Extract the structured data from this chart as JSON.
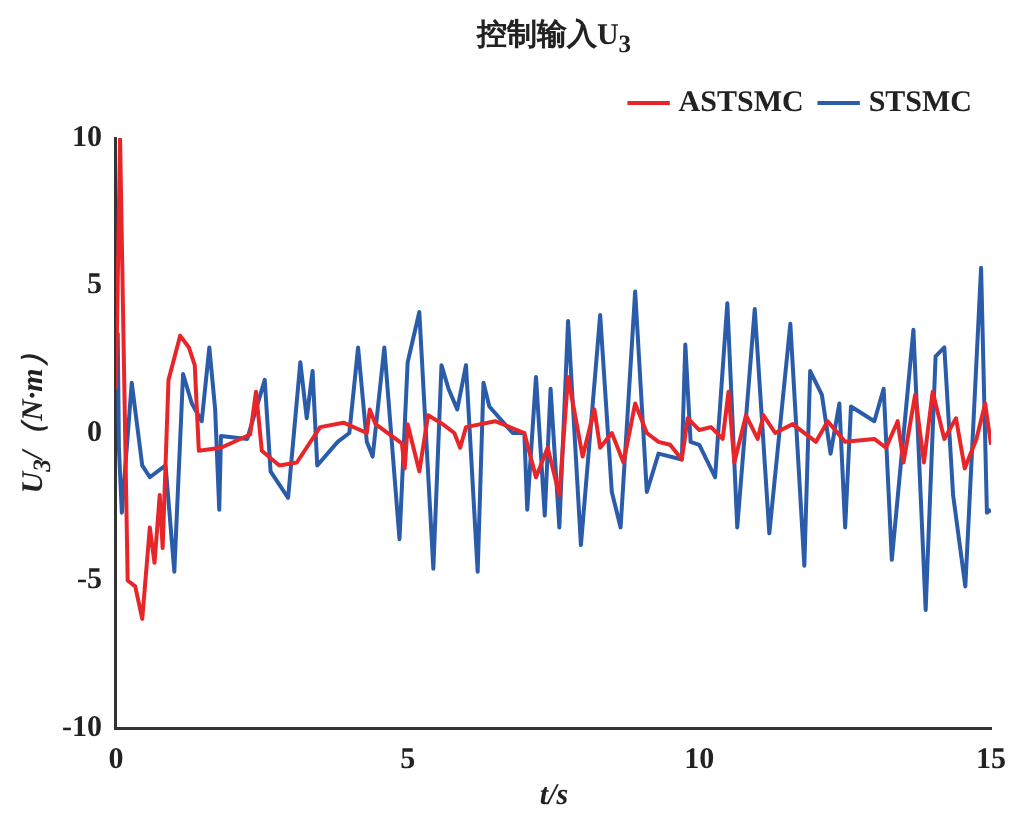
{
  "chart_data": {
    "type": "line",
    "title": "控制输入U$_{3}$",
    "xlabel": "t/s",
    "ylabel": "U$_{3}$/（N·m）",
    "xlim": [
      0,
      15
    ],
    "xticks": [
      0,
      5,
      10,
      15
    ],
    "ylim": [
      -10,
      10
    ],
    "yticks": [
      -10,
      -5,
      0,
      5,
      10
    ],
    "grid": false,
    "legend": "top right",
    "marker": "none",
    "line_style": "solid",
    "series": [
      {
        "name": "ASTSMC",
        "color": "#e8262a",
        "x": [
          0,
          0.07,
          0.2,
          0.33,
          0.45,
          0.58,
          0.66,
          0.75,
          0.8,
          0.9,
          1.1,
          1.25,
          1.35,
          1.42,
          1.8,
          2.3,
          2.4,
          2.5,
          2.8,
          3.1,
          3.5,
          3.9,
          4.3,
          4.35,
          4.45,
          4.9,
          4.95,
          5.0,
          5.2,
          5.35,
          5.6,
          5.8,
          5.9,
          6.0,
          6.5,
          7.0,
          7.2,
          7.4,
          7.6,
          7.75,
          8.0,
          8.2,
          8.3,
          8.5,
          8.7,
          8.9,
          9.1,
          9.3,
          9.5,
          9.7,
          9.8,
          10.0,
          10.2,
          10.4,
          10.5,
          10.6,
          10.8,
          11.0,
          11.1,
          11.3,
          11.6,
          12.0,
          12.2,
          12.5,
          13.0,
          13.2,
          13.4,
          13.5,
          13.7,
          13.85,
          14.0,
          14.2,
          14.4,
          14.55,
          14.75,
          14.9,
          15.0
        ],
        "values": [
          1.5,
          10,
          -5,
          -5.2,
          -6.3,
          -3.2,
          -4.4,
          -2.1,
          -3.9,
          1.8,
          3.3,
          2.9,
          2.3,
          -0.6,
          -0.5,
          -0.05,
          1.4,
          -0.6,
          -1.1,
          -1.0,
          0.2,
          0.35,
          0,
          0.8,
          0.3,
          -0.35,
          -1.2,
          0.3,
          -1.3,
          0.6,
          0.3,
          0,
          -0.5,
          0.2,
          0.4,
          0,
          -1.5,
          -0.5,
          -2.1,
          1.9,
          -0.8,
          0.8,
          -0.5,
          0,
          -1.0,
          1.0,
          0,
          -0.3,
          -0.4,
          -0.9,
          0.5,
          0.1,
          0.2,
          -0.2,
          1.4,
          -1.0,
          0.6,
          -0.2,
          0.6,
          0,
          0.3,
          -0.3,
          0.4,
          -0.3,
          -0.2,
          -0.5,
          0.4,
          -1.0,
          1.3,
          -1.0,
          1.4,
          -0.2,
          0.5,
          -1.2,
          -0.2,
          1.0,
          -0.4
        ]
      },
      {
        "name": "STSMC",
        "color": "#2a5caa",
        "x": [
          0.03,
          0.05,
          0.1,
          0.27,
          0.45,
          0.58,
          0.85,
          1.0,
          1.15,
          1.3,
          1.47,
          1.6,
          1.7,
          1.77,
          1.8,
          2.25,
          2.55,
          2.65,
          2.95,
          3.16,
          3.27,
          3.37,
          3.45,
          3.8,
          4.0,
          4.15,
          4.3,
          4.4,
          4.6,
          4.86,
          5.0,
          5.2,
          5.44,
          5.58,
          5.7,
          5.85,
          6.0,
          6.2,
          6.3,
          6.4,
          6.8,
          7.0,
          7.05,
          7.2,
          7.35,
          7.45,
          7.6,
          7.75,
          7.97,
          8.3,
          8.5,
          8.65,
          8.9,
          9.1,
          9.3,
          9.7,
          9.76,
          9.85,
          10.0,
          10.27,
          10.48,
          10.65,
          10.95,
          11.2,
          11.56,
          11.8,
          11.9,
          12.1,
          12.25,
          12.4,
          12.5,
          12.6,
          13.0,
          13.16,
          13.3,
          13.67,
          13.88,
          14.05,
          14.2,
          14.35,
          14.56,
          14.83,
          14.93,
          15.0
        ],
        "values": [
          3.4,
          -0.5,
          -2.7,
          1.7,
          -1.1,
          -1.5,
          -1.1,
          -4.7,
          2.0,
          1.0,
          0.4,
          2.9,
          0.8,
          -2.6,
          -0.1,
          -0.2,
          1.8,
          -1.3,
          -2.2,
          2.4,
          0.5,
          2.1,
          -1.1,
          -0.3,
          0,
          2.9,
          -0.3,
          -0.8,
          2.9,
          -3.6,
          2.4,
          4.1,
          -4.6,
          2.3,
          1.5,
          0.8,
          2.3,
          -4.7,
          1.7,
          0.9,
          0,
          0,
          -2.6,
          1.9,
          -2.8,
          1.5,
          -3.2,
          3.8,
          -3.8,
          4.0,
          -2.0,
          -3.2,
          4.8,
          -2.0,
          -0.7,
          -0.9,
          3.0,
          -0.3,
          -0.4,
          -1.5,
          4.4,
          -3.2,
          4.2,
          -3.4,
          3.7,
          -4.5,
          2.1,
          1.3,
          -0.7,
          1.0,
          -3.2,
          0.9,
          0.4,
          1.5,
          -4.3,
          3.5,
          -6.0,
          2.6,
          2.9,
          -2.1,
          -5.2,
          5.6,
          -2.7,
          -2.6
        ]
      }
    ]
  }
}
